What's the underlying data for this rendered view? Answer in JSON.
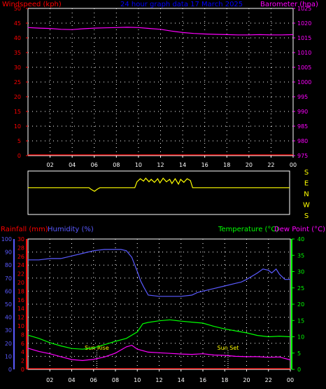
{
  "colors": {
    "wind": "#ff0000",
    "title": "#0000ff",
    "baro": "#ff00ff",
    "rain": "#ff0000",
    "humidity": "#5a5aff",
    "temp": "#00ff00",
    "dew": "#ff00ff",
    "dir": "#ffff00",
    "axis": "#ffffff",
    "grid": "#ffffff"
  },
  "chart_data": [
    {
      "type": "line",
      "title": "24 hour graph data  17 March 2025",
      "left_label": "Windspeed (kph)",
      "right_label": "Barometer (hpa)",
      "x_ticks": [
        "02",
        "04",
        "06",
        "08",
        "10",
        "12",
        "14",
        "16",
        "18",
        "20",
        "22",
        "00"
      ],
      "y_left_ticks": [
        "0",
        "5",
        "10",
        "15",
        "20",
        "25",
        "30",
        "35",
        "40",
        "45",
        "50"
      ],
      "y_left_range": [
        0,
        50
      ],
      "y_right_ticks": [
        "975",
        "980",
        "985",
        "990",
        "995",
        "1000",
        "1005",
        "1010",
        "1015",
        "1020",
        "1025"
      ],
      "y_right_range": [
        975,
        1025
      ],
      "x_range": [
        0,
        24
      ],
      "grid": true,
      "series": [
        {
          "name": "Windspeed (kph)",
          "axis": "left",
          "x": [
            0,
            24
          ],
          "values": [
            0,
            0
          ]
        },
        {
          "name": "Barometer (hpa)",
          "axis": "right",
          "x": [
            0,
            1,
            2,
            3,
            4,
            5,
            6,
            7,
            8,
            9,
            10,
            11,
            12,
            13,
            14,
            15,
            16,
            17,
            18,
            19,
            20,
            21,
            22,
            23,
            24
          ],
          "values": [
            1018.5,
            1018.3,
            1018.2,
            1017.9,
            1017.8,
            1018.1,
            1018.3,
            1018.4,
            1018.5,
            1018.6,
            1018.5,
            1018.2,
            1017.9,
            1017.3,
            1016.8,
            1016.5,
            1016.3,
            1016.2,
            1016.1,
            1016,
            1016,
            1016.1,
            1016,
            1016,
            1016.1
          ]
        }
      ]
    },
    {
      "type": "line",
      "title": "Wind Direction",
      "direction_labels": [
        "S",
        "E",
        "N",
        "W",
        "S"
      ],
      "x_range": [
        0,
        24
      ],
      "series": [
        {
          "name": "Wind Direction",
          "x": [
            0,
            5.6,
            5.8,
            6.1,
            6.4,
            6.6,
            9.8,
            10.0,
            10.3,
            10.6,
            10.8,
            11.1,
            11.3,
            11.6,
            11.9,
            12.1,
            12.4,
            12.7,
            13.0,
            13.2,
            13.5,
            13.8,
            14.0,
            14.3,
            14.6,
            14.9,
            15.1,
            24
          ],
          "values": [
            0,
            0,
            -0.3,
            -0.6,
            -0.2,
            0,
            0,
            1,
            1.5,
            1.1,
            1.6,
            1.0,
            1.4,
            0.9,
            1.5,
            0.8,
            1.6,
            1.0,
            1.4,
            0.7,
            1.5,
            0.6,
            1.4,
            0.9,
            1.5,
            1.2,
            0,
            0
          ]
        }
      ]
    },
    {
      "type": "line",
      "left_label_1": "Rainfall (mm)",
      "left_label_2": "Humidity (%)",
      "right_label_1": "Temperature (°C)",
      "right_label_2": "Dew Point (°C)",
      "x_ticks": [
        "02",
        "04",
        "06",
        "08",
        "10",
        "12",
        "14",
        "16",
        "18",
        "20",
        "22",
        "00"
      ],
      "y_humidity_ticks": [
        "0",
        "10",
        "20",
        "30",
        "40",
        "50",
        "60",
        "70",
        "80",
        "90",
        "100"
      ],
      "y_humidity_range": [
        0,
        100
      ],
      "y_rain_ticks": [
        "0",
        "2",
        "4",
        "6",
        "8",
        "10",
        "12",
        "14",
        "16",
        "18",
        "20",
        "22",
        "24",
        "26",
        "28",
        "30"
      ],
      "y_rain_range": [
        0,
        30
      ],
      "y_temp_ticks": [
        "0",
        "5",
        "10",
        "15",
        "20",
        "25",
        "30",
        "35",
        "40"
      ],
      "y_temp_range": [
        0,
        40
      ],
      "x_range": [
        0,
        24
      ],
      "grid": true,
      "annotations": [
        {
          "text": "Sun Rise",
          "x": 6.3
        },
        {
          "text": "Sun Set",
          "x": 18.3
        }
      ],
      "series": [
        {
          "name": "Rainfall (mm)",
          "axis": "rain",
          "x": [
            0,
            24
          ],
          "values": [
            0,
            0
          ]
        },
        {
          "name": "Humidity (%)",
          "axis": "humidity",
          "x": [
            0,
            1,
            2,
            3,
            4,
            5,
            6,
            7,
            8,
            8.5,
            9,
            9.5,
            10,
            10.3,
            10.6,
            11,
            12,
            13,
            14,
            15,
            15.5,
            16,
            17,
            18,
            19,
            19.5,
            20,
            21,
            21.5,
            22,
            22.3,
            22.7,
            23,
            23.5,
            24
          ],
          "values": [
            84,
            84,
            85,
            85,
            87,
            89,
            91,
            92,
            92,
            92,
            91,
            86,
            75,
            68,
            63,
            57,
            56,
            56,
            56,
            57,
            59,
            60,
            62,
            64,
            66,
            67,
            69,
            74,
            77,
            76,
            74,
            77,
            73,
            69,
            69
          ]
        },
        {
          "name": "Temperature (°C)",
          "axis": "temp",
          "x": [
            0,
            1,
            2,
            3,
            4,
            5,
            6,
            7,
            8,
            9,
            10,
            10.5,
            11,
            12,
            13,
            14,
            15,
            16,
            17,
            18,
            19,
            20,
            21,
            22,
            23,
            24
          ],
          "values": [
            10.5,
            9.5,
            8.2,
            7.2,
            6.4,
            6.2,
            6.6,
            7.6,
            8.6,
            9.5,
            11.5,
            14,
            14.4,
            14.9,
            15.2,
            14.8,
            14.5,
            14.2,
            13.2,
            12.4,
            11.8,
            11.2,
            10.4,
            10.0,
            10.2,
            10.0
          ]
        },
        {
          "name": "Dew Point (°C)",
          "axis": "temp",
          "x": [
            0,
            1,
            2,
            3,
            4,
            5,
            6,
            7,
            8,
            9,
            9.5,
            10,
            11,
            12,
            13,
            14,
            15,
            16,
            17,
            18,
            19,
            20,
            21,
            22,
            23,
            24
          ],
          "values": [
            6.5,
            5.5,
            4.8,
            3.9,
            3.0,
            2.7,
            3.1,
            3.8,
            5.0,
            6.9,
            7.4,
            6.2,
            5.3,
            5.1,
            4.9,
            4.7,
            4.6,
            4.8,
            4.4,
            4.3,
            4.0,
            3.9,
            3.9,
            3.7,
            3.8,
            2.9
          ]
        }
      ]
    }
  ]
}
